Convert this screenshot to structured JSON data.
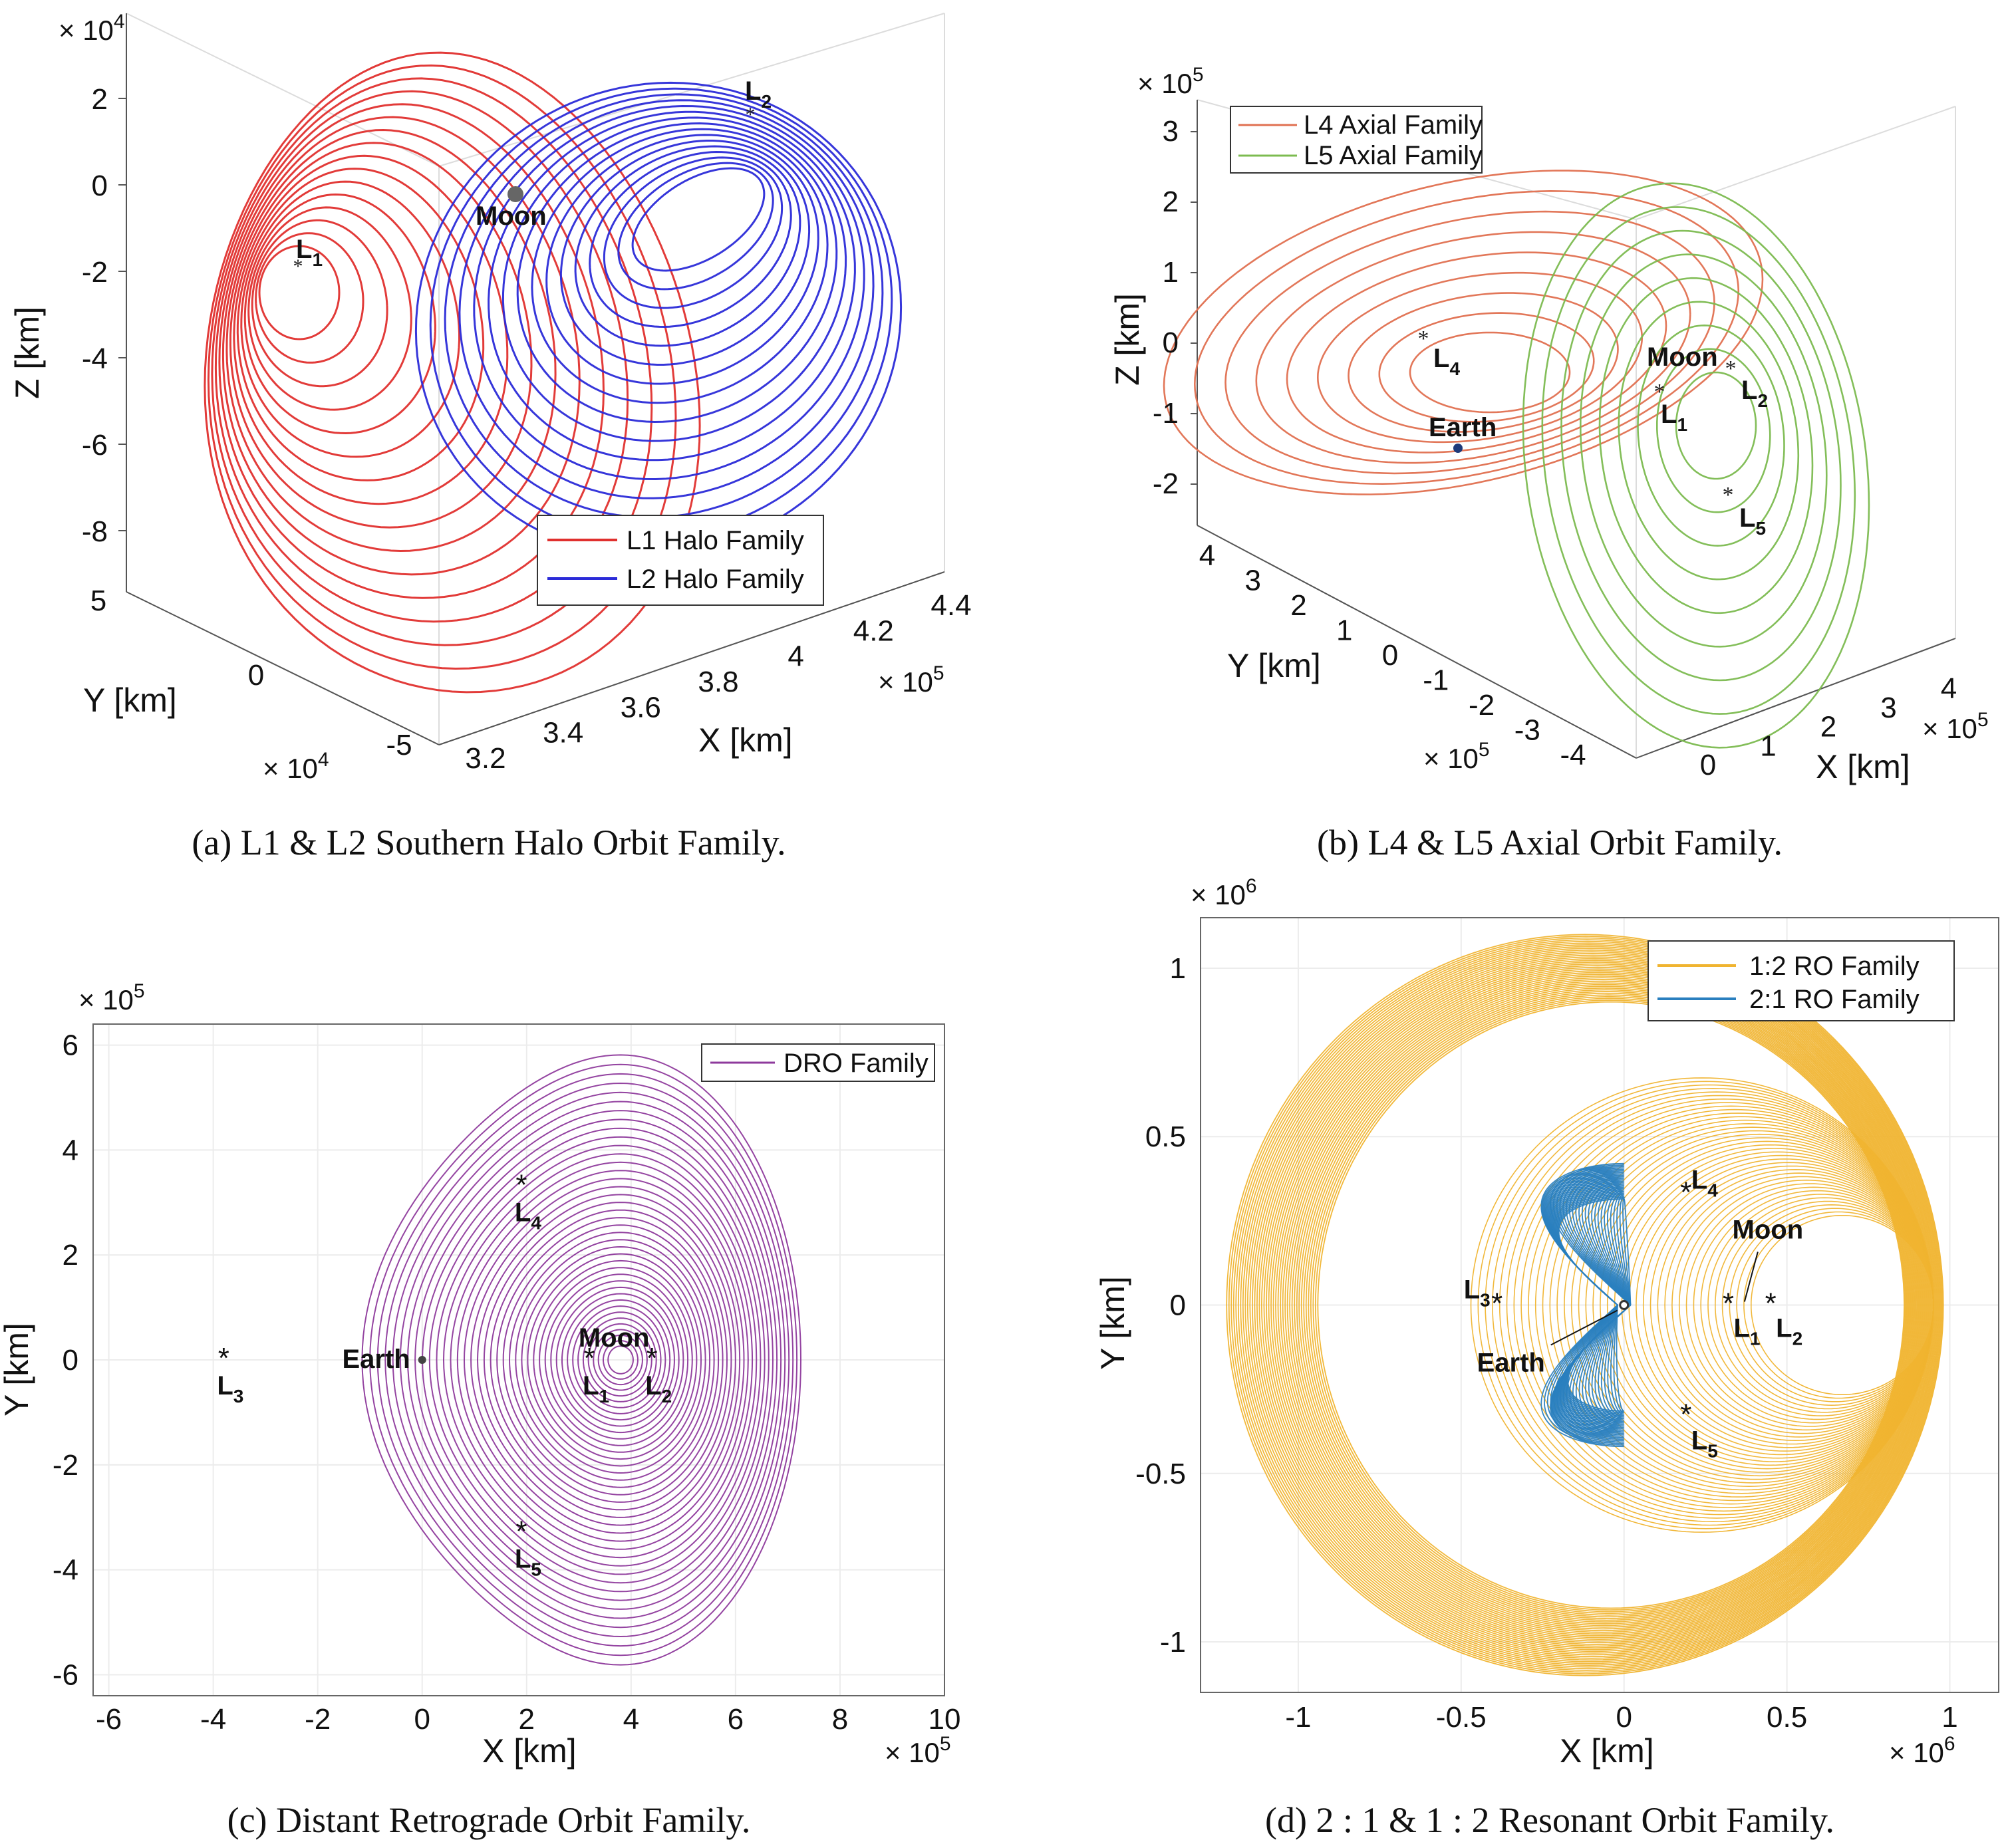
{
  "chart_data": [
    {
      "type": "line",
      "panel": "a",
      "caption": "(a) L1 & L2 Southern Halo Orbit Family.",
      "xlabel": "X [km]",
      "ylabel": "Y [km]",
      "zlabel": "Z [km]",
      "x_multiplier": "× 10^5",
      "y_multiplier": "× 10^4",
      "z_multiplier": "× 10^4",
      "x_ticks": [
        "3.2",
        "3.4",
        "3.6",
        "3.8",
        "4",
        "4.2",
        "4.4"
      ],
      "y_ticks": [
        "5",
        "0",
        "-5"
      ],
      "z_ticks": [
        "2",
        "0",
        "-2",
        "-4",
        "-6",
        "-8"
      ],
      "xlim": [
        3.2,
        4.4
      ],
      "ylim": [
        -5,
        5
      ],
      "zlim": [
        -9,
        3
      ],
      "grid": true,
      "legend_position": "bottom-right",
      "series": [
        {
          "name": "L1 Halo Family",
          "color": "#e0302e",
          "members": 16
        },
        {
          "name": "L2 Halo Family",
          "color": "#2b2bd8",
          "members": 16
        }
      ],
      "points": [
        {
          "label": "L",
          "sub": "1"
        },
        {
          "label": "L",
          "sub": "2"
        },
        {
          "label": "Moon",
          "sub": ""
        }
      ]
    },
    {
      "type": "line",
      "panel": "b",
      "caption": "(b) L4 & L5 Axial Orbit Family.",
      "xlabel": "X [km]",
      "ylabel": "Y [km]",
      "zlabel": "Z [km]",
      "x_multiplier": "× 10^5",
      "y_multiplier": "× 10^5",
      "z_multiplier": "× 10^5",
      "x_ticks": [
        "0",
        "1",
        "2",
        "3",
        "4"
      ],
      "y_ticks": [
        "4",
        "3",
        "2",
        "1",
        "0",
        "-1",
        "-2",
        "-3",
        "-4"
      ],
      "z_ticks": [
        "3",
        "2",
        "1",
        "0",
        "-1",
        "-2"
      ],
      "xlim": [
        -0.5,
        4.5
      ],
      "ylim": [
        -4.5,
        4.5
      ],
      "zlim": [
        -2.5,
        3.5
      ],
      "grid": true,
      "legend_position": "top-left",
      "series": [
        {
          "name": "L4 Axial Family",
          "color": "#e07050",
          "members": 9
        },
        {
          "name": "L5 Axial Family",
          "color": "#7cbb50",
          "members": 9
        }
      ],
      "points": [
        {
          "label": "L",
          "sub": "4"
        },
        {
          "label": "L",
          "sub": "1"
        },
        {
          "label": "L",
          "sub": "2"
        },
        {
          "label": "L",
          "sub": "5"
        },
        {
          "label": "Moon",
          "sub": ""
        },
        {
          "label": "Earth",
          "sub": ""
        }
      ]
    },
    {
      "type": "line",
      "panel": "c",
      "caption": "(c) Distant Retrograde Orbit Family.",
      "xlabel": "X [km]",
      "ylabel": "Y [km]",
      "x_multiplier": "× 10^5",
      "y_multiplier": "× 10^5",
      "x_ticks": [
        "-6",
        "-4",
        "-2",
        "0",
        "2",
        "4",
        "6",
        "8",
        "10"
      ],
      "y_ticks": [
        "6",
        "4",
        "2",
        "0",
        "-2",
        "-4",
        "-6"
      ],
      "xlim": [
        -6.3,
        10
      ],
      "ylim": [
        -6.4,
        6.4
      ],
      "grid": true,
      "legend_position": "top-right",
      "series": [
        {
          "name": "DRO Family",
          "color": "#8e3a9c",
          "members": 40
        }
      ],
      "points": [
        {
          "label": "L",
          "sub": "4",
          "x": 1.9,
          "y": 3.3
        },
        {
          "label": "L",
          "sub": "5",
          "x": 1.9,
          "y": -3.3
        },
        {
          "label": "L",
          "sub": "3",
          "x": -3.8,
          "y": 0
        },
        {
          "label": "L",
          "sub": "1",
          "x": 3.2,
          "y": 0
        },
        {
          "label": "L",
          "sub": "2",
          "x": 4.4,
          "y": 0
        },
        {
          "label": "Moon",
          "sub": "",
          "x": 3.8,
          "y": 0
        },
        {
          "label": "Earth",
          "sub": "",
          "x": 0,
          "y": 0
        }
      ]
    },
    {
      "type": "line",
      "panel": "d",
      "caption": "(d) 2 : 1 & 1 : 2 Resonant Orbit Family.",
      "xlabel": "X [km]",
      "ylabel": "Y [km]",
      "x_multiplier": "× 10^6",
      "y_multiplier": "× 10^6",
      "x_ticks": [
        "-1",
        "-0.5",
        "0",
        "0.5",
        "1"
      ],
      "y_ticks": [
        "1",
        "0.5",
        "0",
        "-0.5",
        "-1"
      ],
      "xlim": [
        -1.3,
        1.15
      ],
      "ylim": [
        -1.15,
        1.15
      ],
      "grid": true,
      "legend_position": "top-right",
      "series": [
        {
          "name": "1:2 RO Family",
          "color": "#f0b430",
          "members": 40
        },
        {
          "name": "2:1 RO Family",
          "color": "#2a7fbf",
          "members": 25
        }
      ],
      "points": [
        {
          "label": "L",
          "sub": "4",
          "x": 0.19,
          "y": 0.33
        },
        {
          "label": "L",
          "sub": "5",
          "x": 0.19,
          "y": -0.33
        },
        {
          "label": "L",
          "sub": "3",
          "x": -0.39,
          "y": 0
        },
        {
          "label": "L",
          "sub": "1",
          "x": 0.32,
          "y": 0
        },
        {
          "label": "L",
          "sub": "2",
          "x": 0.45,
          "y": 0
        },
        {
          "label": "Moon",
          "sub": "",
          "x": 0.38,
          "y": 0
        },
        {
          "label": "Earth",
          "sub": "",
          "x": 0,
          "y": 0
        }
      ]
    }
  ]
}
